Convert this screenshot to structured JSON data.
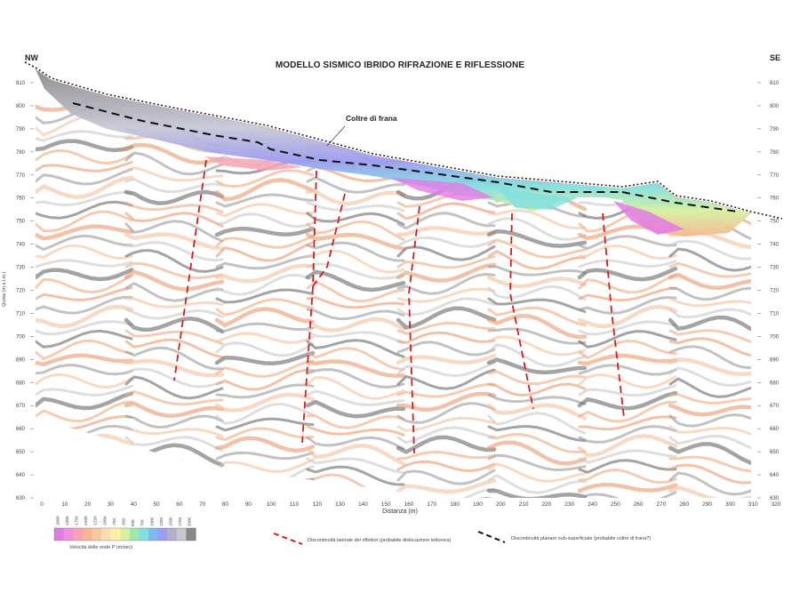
{
  "header": {
    "title": "MODELLO SISMICO IBRIDO RIFRAZIONE E RIFLESSIONE",
    "left_direction": "NW",
    "right_direction": "SE"
  },
  "annotations": {
    "landslide_cover": "Coltre di frana"
  },
  "axes": {
    "y_label": "Quota (m.s.l.m.)",
    "y_ticks": [
      "810",
      "800",
      "790",
      "780",
      "770",
      "760",
      "750",
      "740",
      "730",
      "720",
      "710",
      "700",
      "690",
      "680",
      "670",
      "660",
      "650",
      "640",
      "630"
    ],
    "x_label": "Distanza (m)",
    "x_ticks": [
      "0",
      "10",
      "20",
      "30",
      "40",
      "50",
      "60",
      "70",
      "80",
      "90",
      "100",
      "110",
      "120",
      "130",
      "140",
      "150",
      "160",
      "170",
      "180",
      "190",
      "200",
      "210",
      "220",
      "230",
      "240",
      "250",
      "260",
      "270",
      "280",
      "290",
      "300",
      "310",
      "320"
    ]
  },
  "legend": {
    "colorbar_title": "Velocità delle onde P (m/sec)",
    "colorbar_values": [
      "-2000",
      "-1900",
      "-1750",
      "-1500",
      "-1250",
      "-1000",
      "-750",
      "-500",
      "500",
      "750",
      "1000",
      "1250",
      "1500",
      "1750",
      "2000"
    ],
    "colorbar_colors": [
      "#e27ae6",
      "#f090d8",
      "#f4a4b4",
      "#f6b690",
      "#f8c8a0",
      "#fadcb4",
      "#fff0a8",
      "#d8f0a0",
      "#a0e8b0",
      "#80e0e0",
      "#80b8f0",
      "#9c9cf0",
      "#b0b0c8",
      "#c8c8c8",
      "#888888"
    ],
    "red_dashed_label": "Discontinuità laterale dei riflettori (probabile dislocazione tettonica)",
    "black_dashed_label": "Discontinuità planare sub-superficiale (probabile coltre di frana?)"
  }
}
